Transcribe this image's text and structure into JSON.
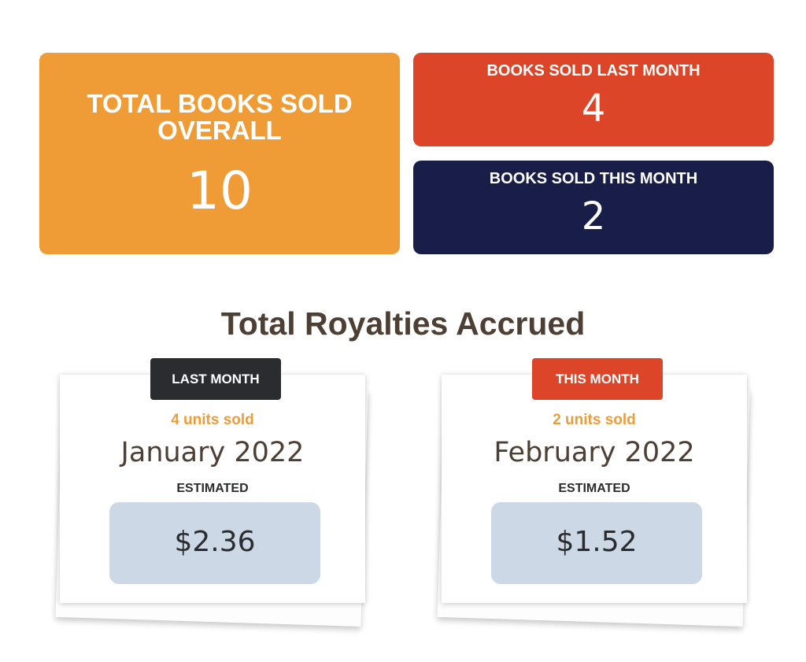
{
  "stats": {
    "total": {
      "title": "TOTAL BOOKS SOLD OVERALL",
      "value": "10",
      "color": "#EF9C37"
    },
    "last_month": {
      "title": "BOOKS SOLD LAST MONTH",
      "value": "4",
      "color": "#DD4528"
    },
    "this_month": {
      "title": "BOOKS SOLD THIS MONTH",
      "value": "2",
      "color": "#181E47"
    }
  },
  "royalties": {
    "heading": "Total Royalties Accrued",
    "cards": [
      {
        "tag": "LAST MONTH",
        "tag_color": "#2B2C2F",
        "units": "4 units sold",
        "month": "January 2022",
        "estimated_label": "ESTIMATED",
        "amount": "$2.36"
      },
      {
        "tag": "THIS MONTH",
        "tag_color": "#DD4528",
        "units": "2 units sold",
        "month": "February 2022",
        "estimated_label": "ESTIMATED",
        "amount": "$1.52"
      }
    ]
  },
  "colors": {
    "accent_orange": "#EF9C37",
    "accent_red": "#DD4528",
    "navy": "#181E47",
    "heading_brown": "#4E3F34",
    "amount_box": "#CDD8E6"
  }
}
